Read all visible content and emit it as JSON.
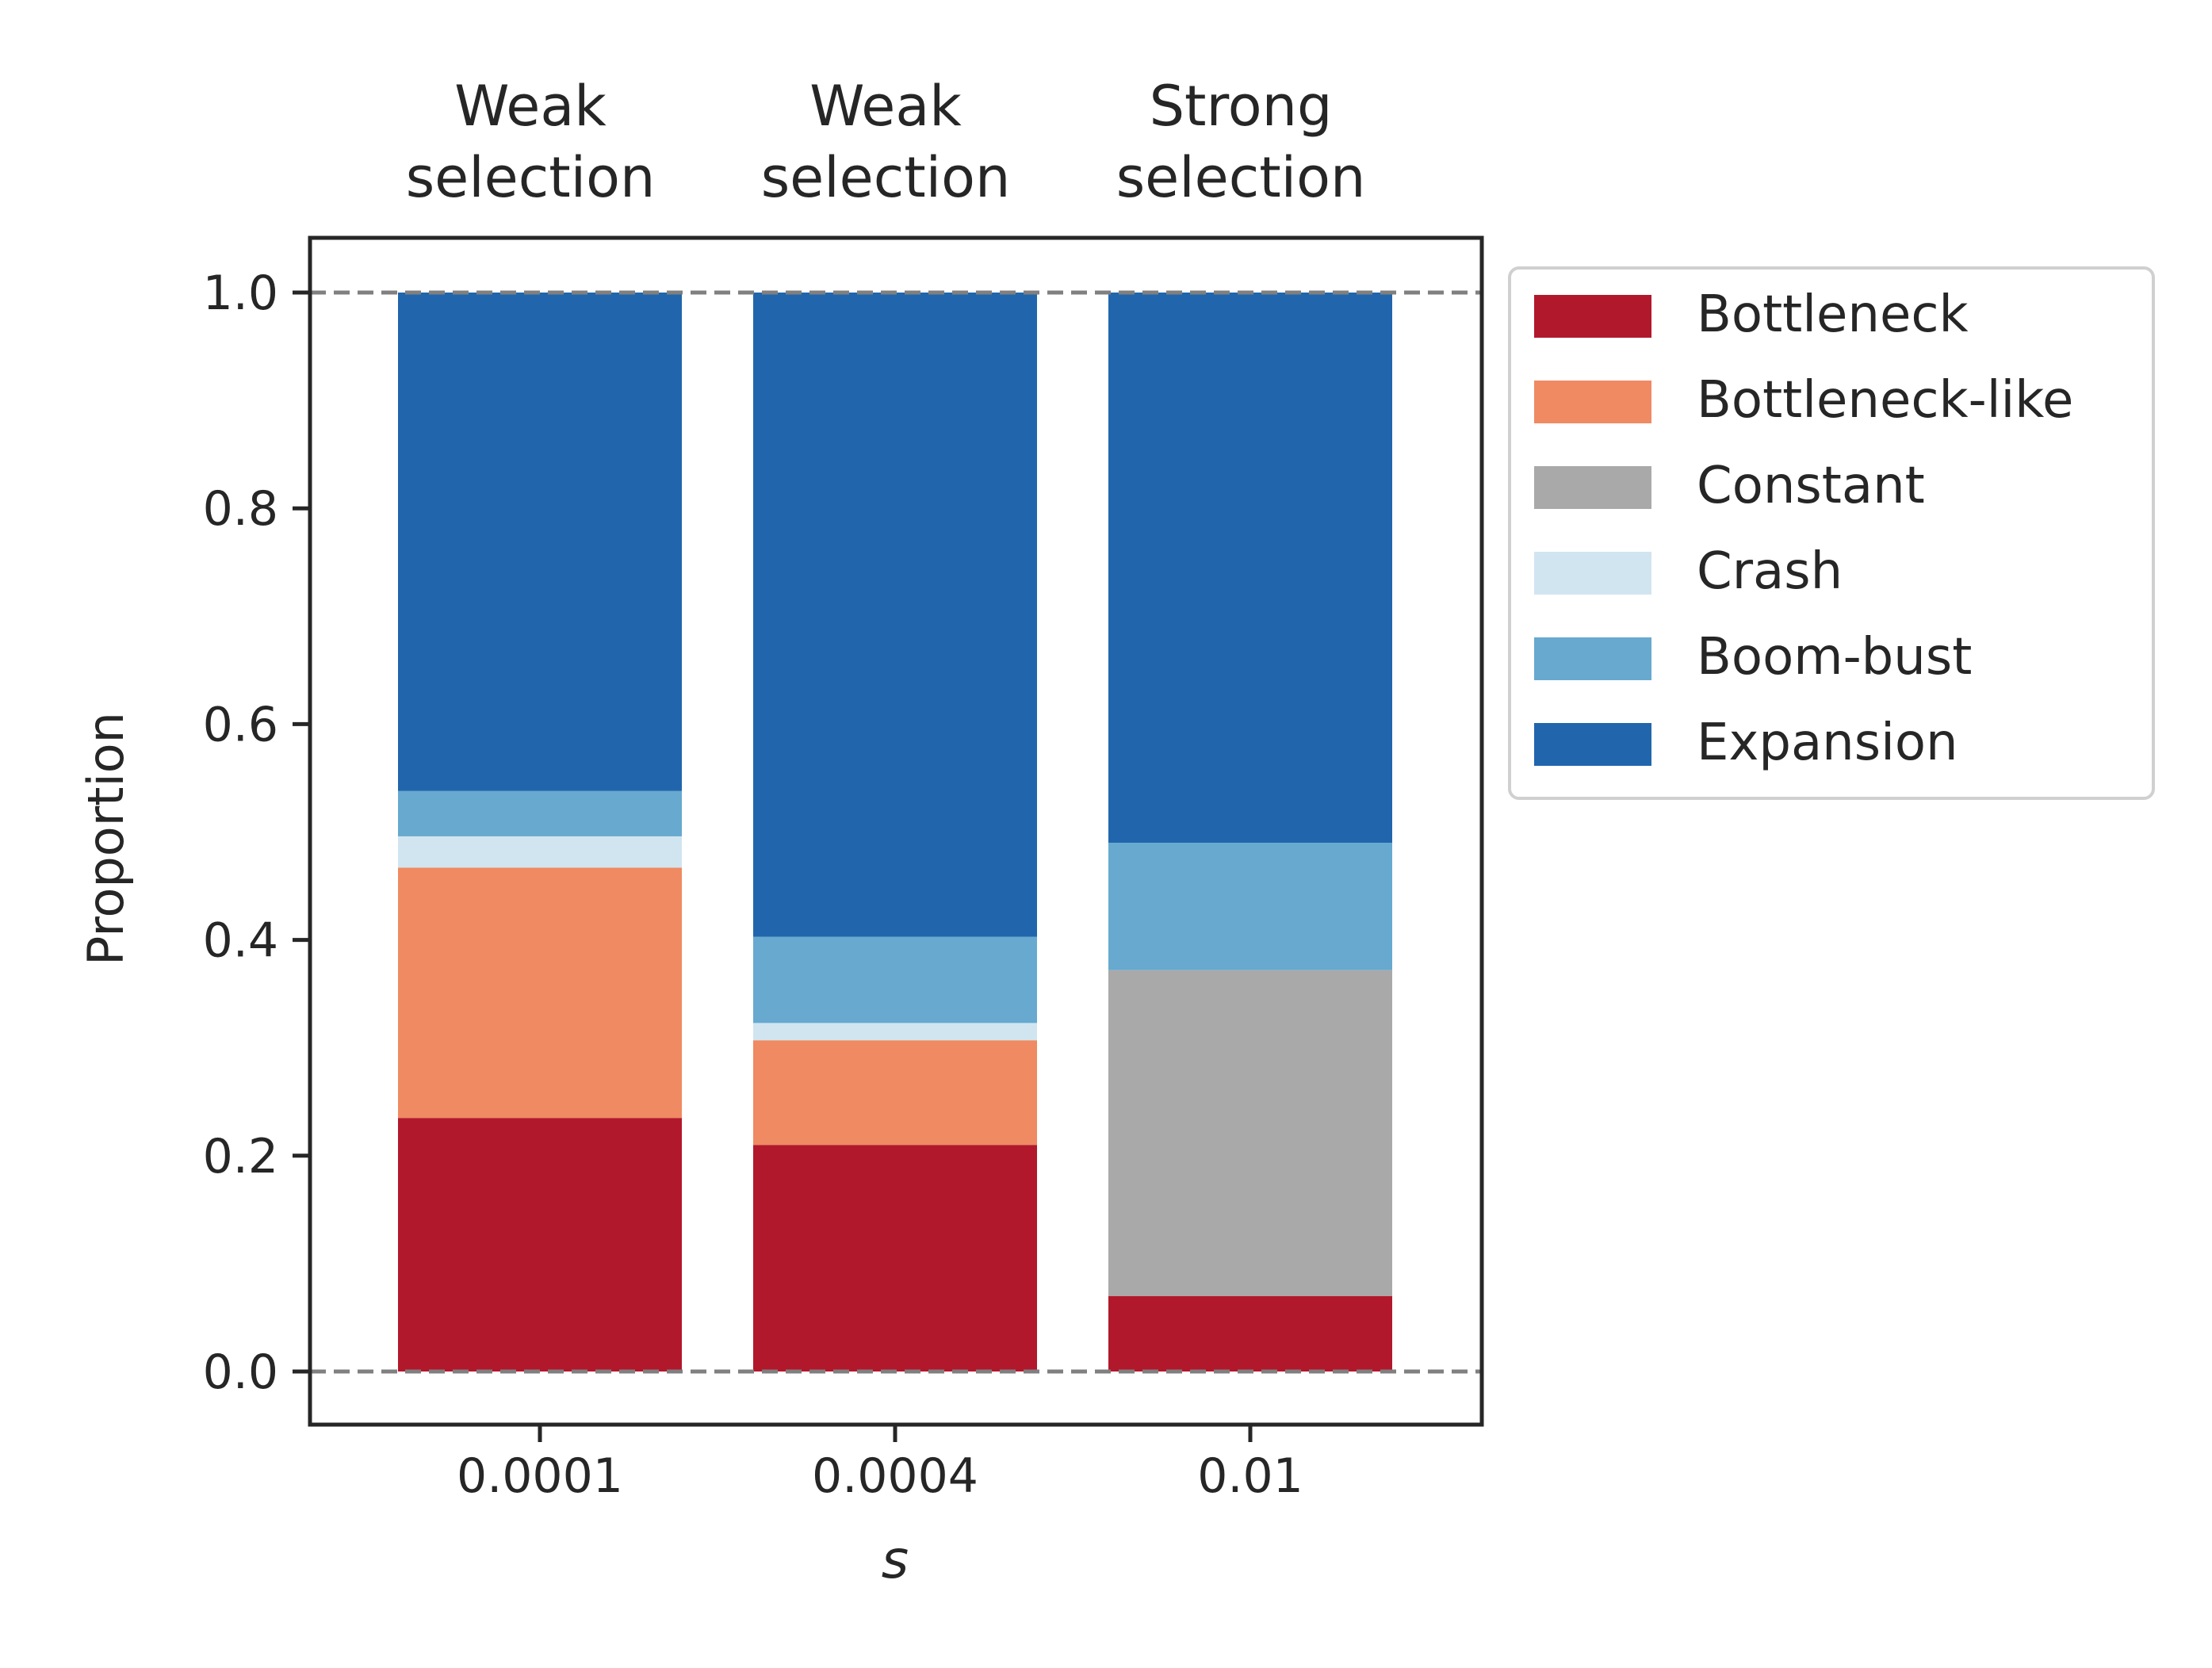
{
  "chart_data": {
    "type": "bar",
    "stacked": true,
    "categories": [
      "0.0001",
      "0.0004",
      "0.01"
    ],
    "category_headers": [
      "Weak selection",
      "Weak selection",
      "Strong selection"
    ],
    "xlabel": "s",
    "ylabel": "Proportion",
    "ylim": [
      -0.05,
      1.05
    ],
    "yticks": [
      "0.0",
      "0.2",
      "0.4",
      "0.6",
      "0.8",
      "1.0"
    ],
    "reference_lines": [
      0.0,
      1.0
    ],
    "grid": false,
    "legend_position": "outside right, top",
    "series": [
      {
        "name": "Bottleneck",
        "color": "#b2182b",
        "values": [
          0.235,
          0.21,
          0.07
        ]
      },
      {
        "name": "Bottleneck-like",
        "color": "#ef8a62",
        "values": [
          0.232,
          0.097,
          0.0
        ]
      },
      {
        "name": "Constant",
        "color": "#a9a9a9",
        "values": [
          0.0,
          0.0,
          0.302
        ]
      },
      {
        "name": "Crash",
        "color": "#d1e5f0",
        "values": [
          0.029,
          0.016,
          0.0
        ]
      },
      {
        "name": "Boom-bust",
        "color": "#67a9cf",
        "values": [
          0.042,
          0.08,
          0.118
        ]
      },
      {
        "name": "Expansion",
        "color": "#2166ac",
        "values": [
          0.462,
          0.597,
          0.51
        ]
      }
    ]
  }
}
